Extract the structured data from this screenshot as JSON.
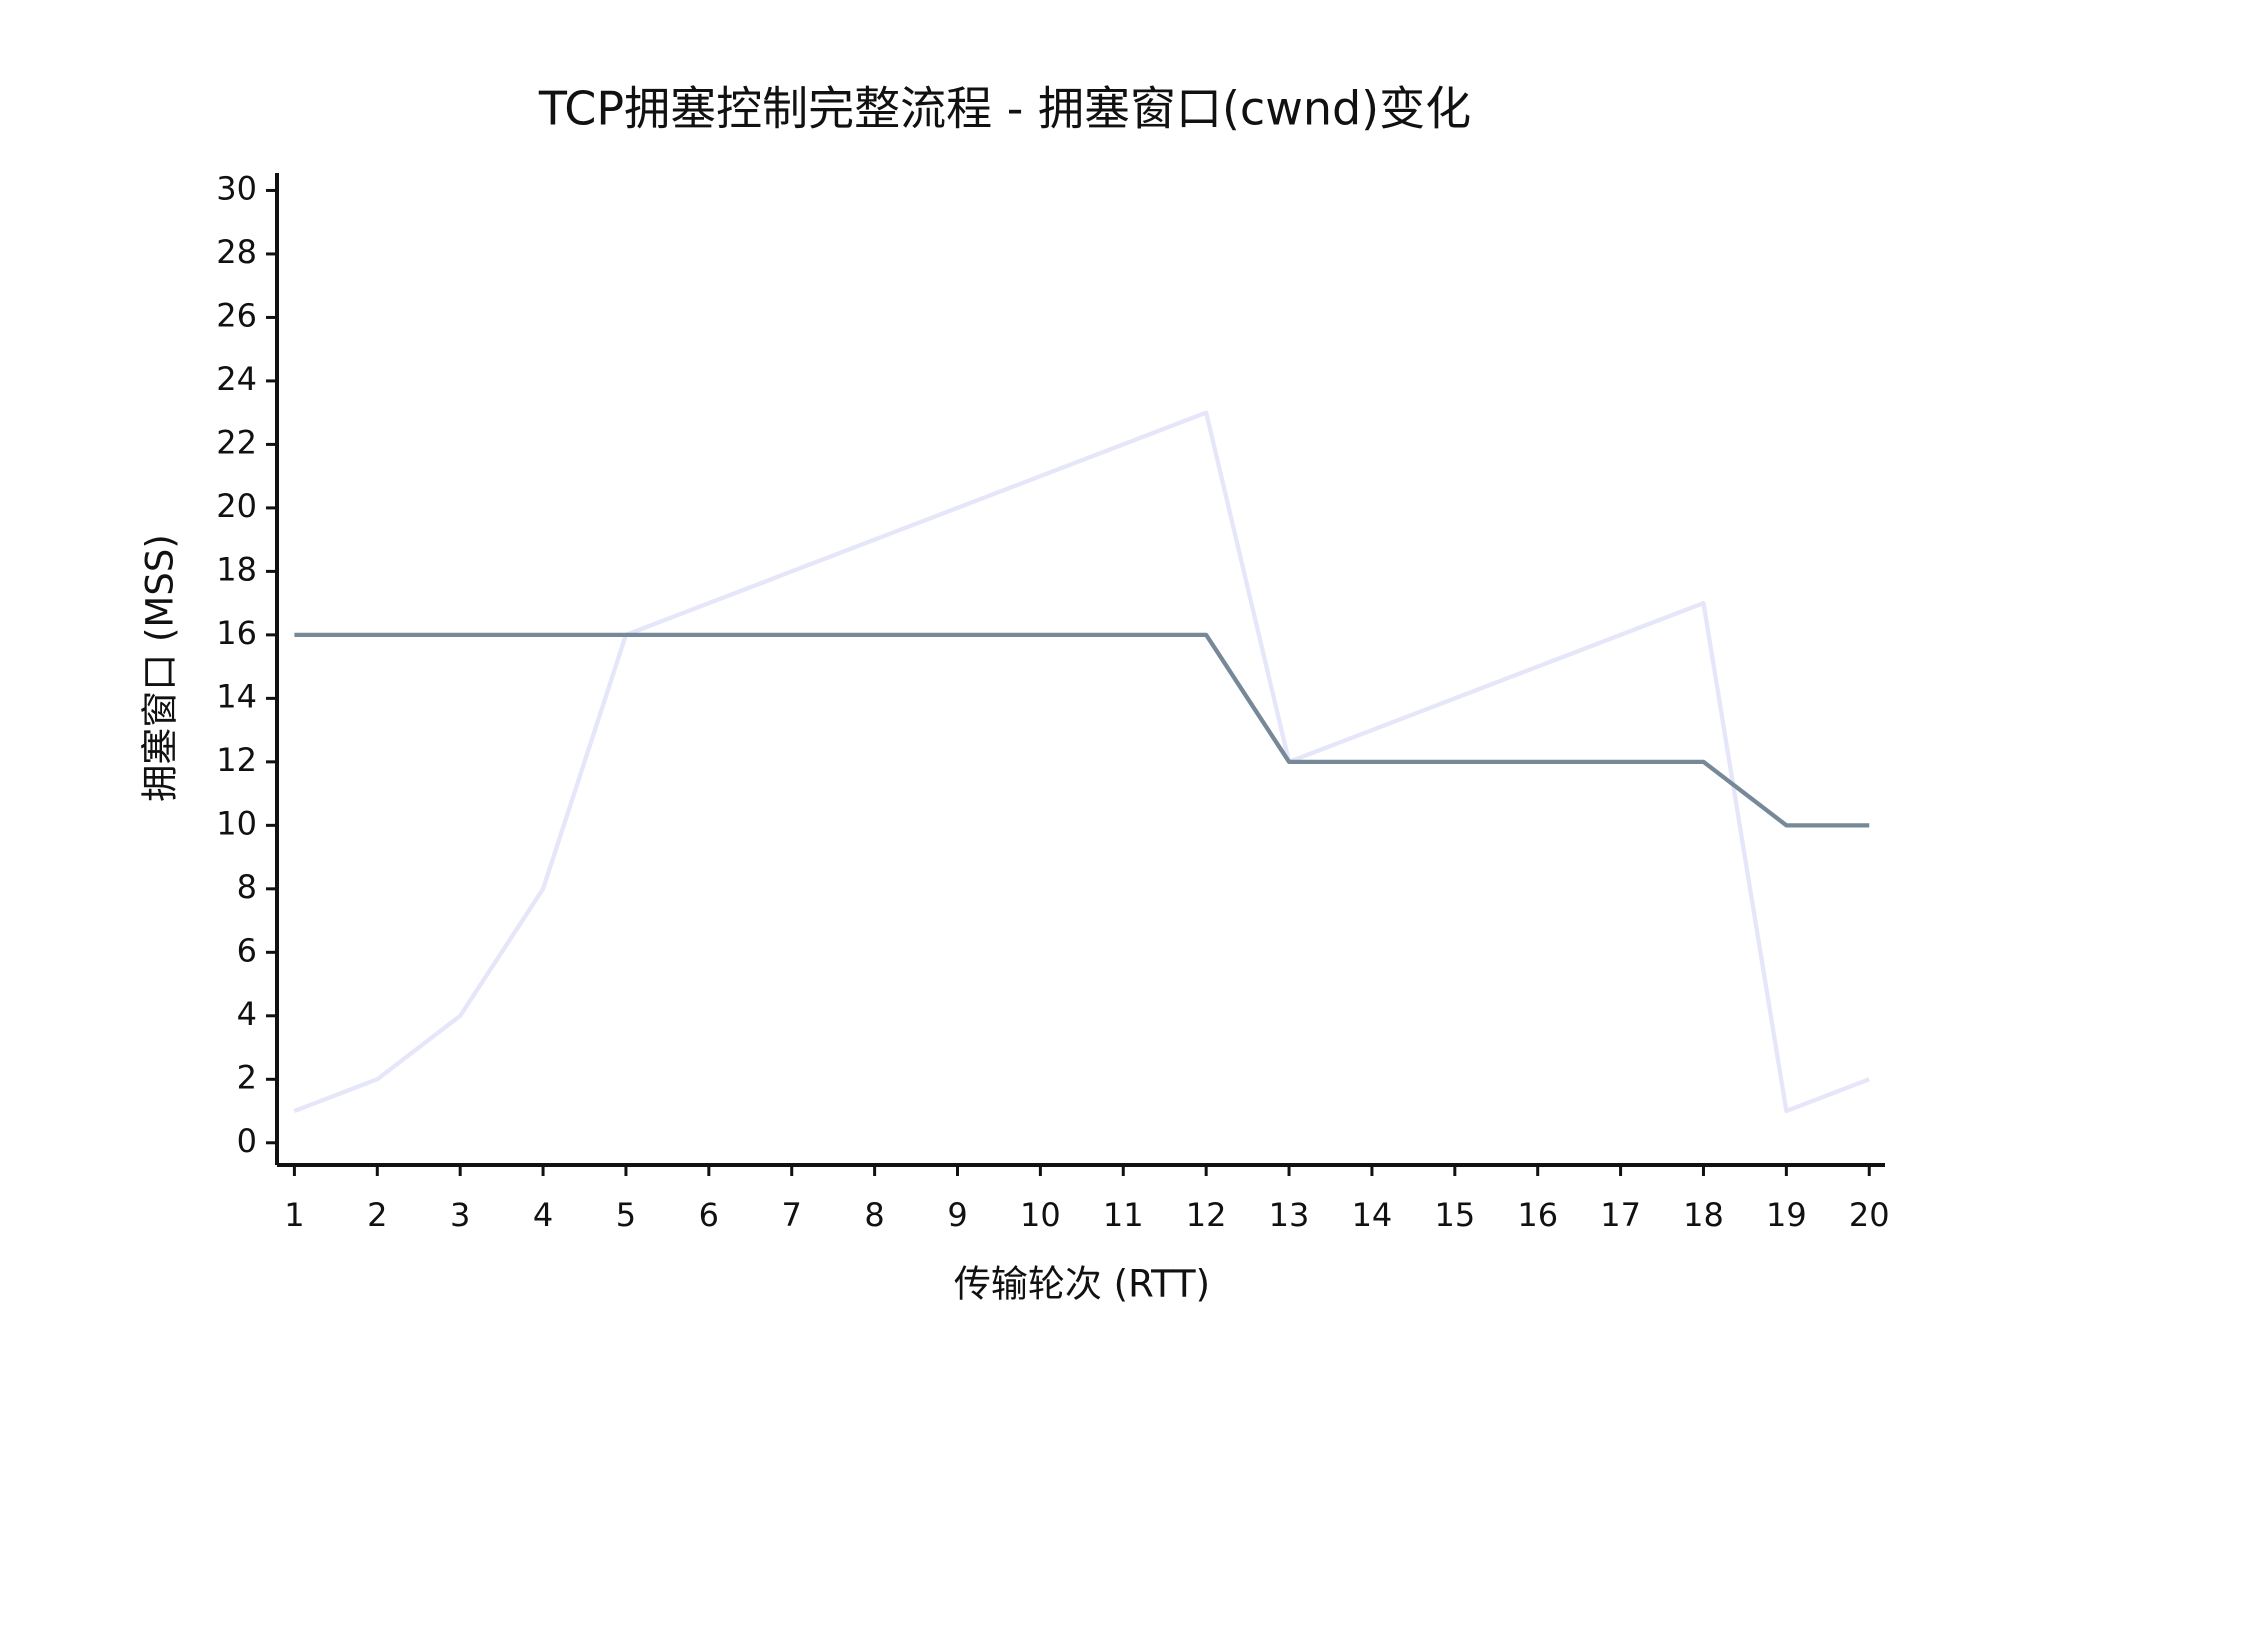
{
  "chart_data": {
    "type": "line",
    "title": "TCP拥塞控制完整流程 - 拥塞窗口(cwnd)变化",
    "xlabel": "传输轮次 (RTT)",
    "ylabel": "拥塞窗口 (MSS)",
    "x": [
      1,
      2,
      3,
      4,
      5,
      6,
      7,
      8,
      9,
      10,
      11,
      12,
      13,
      14,
      15,
      16,
      17,
      18,
      19,
      20
    ],
    "series": [
      {
        "color": "#e6e6fa",
        "values": [
          1,
          2,
          4,
          8,
          16,
          17,
          18,
          19,
          20,
          21,
          22,
          23,
          12,
          13,
          14,
          15,
          16,
          17,
          1,
          2
        ]
      },
      {
        "color": "#778899",
        "values": [
          16,
          16,
          16,
          16,
          16,
          16,
          16,
          16,
          16,
          16,
          16,
          16,
          12,
          12,
          12,
          12,
          12,
          12,
          10,
          10
        ]
      }
    ],
    "xlim": [
      0.79,
      20.19
    ],
    "ylim": [
      -0.7,
      30.55
    ],
    "xticks": [
      1,
      2,
      3,
      4,
      5,
      6,
      7,
      8,
      9,
      10,
      11,
      12,
      13,
      14,
      15,
      16,
      17,
      18,
      19,
      20
    ],
    "yticks": [
      0,
      2,
      4,
      6,
      8,
      10,
      12,
      14,
      16,
      18,
      20,
      22,
      24,
      26,
      28,
      30
    ],
    "grid": false
  }
}
